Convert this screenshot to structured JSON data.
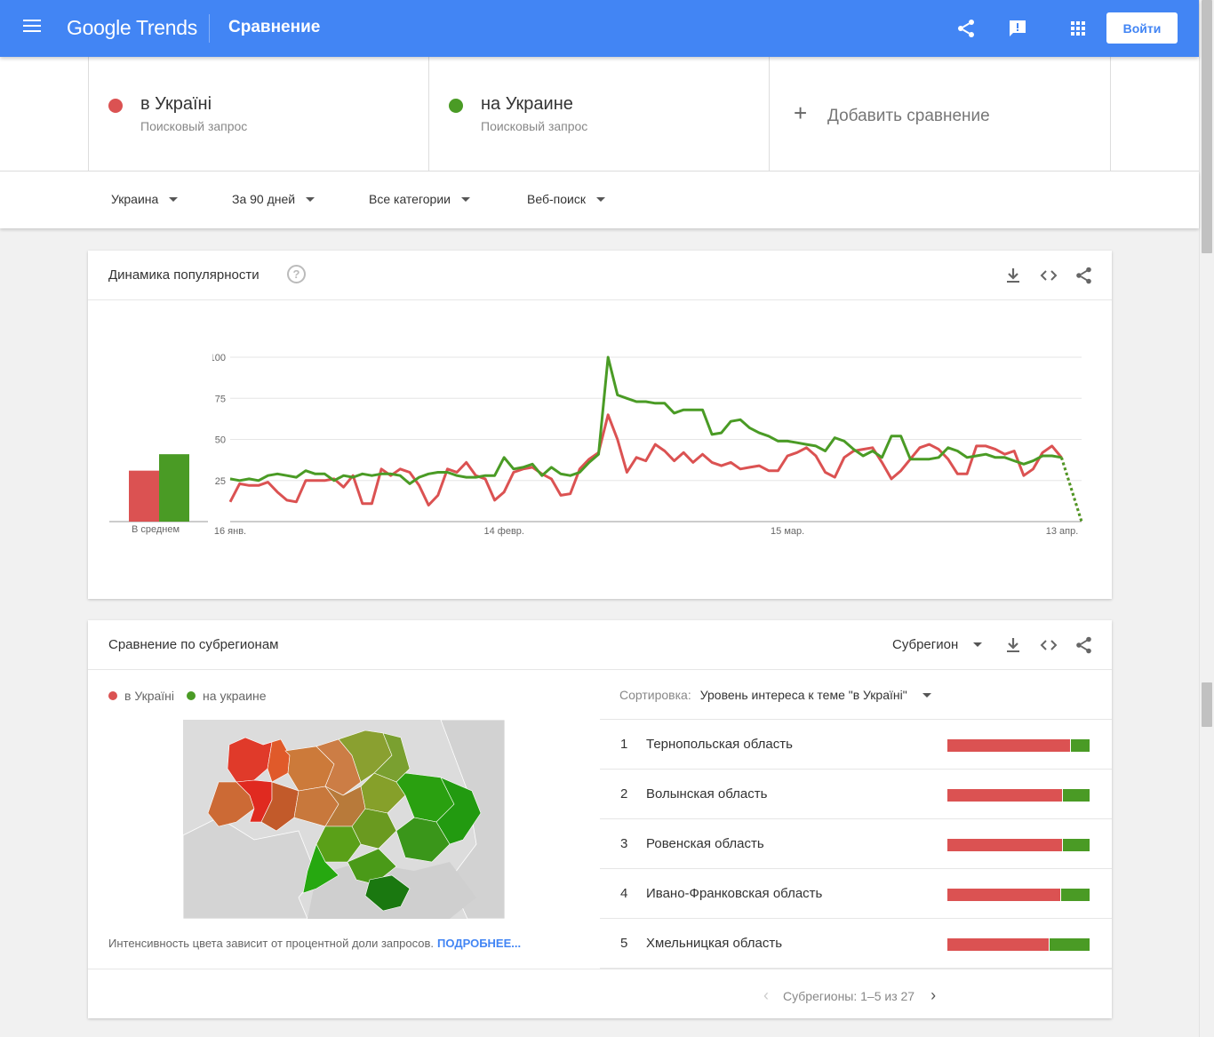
{
  "header": {
    "logo": "Google Trends",
    "title": "Сравнение",
    "login_label": "Войти"
  },
  "terms": [
    {
      "name": "в Україні",
      "type": "Поисковый запрос",
      "color": "#db5252"
    },
    {
      "name": "на Украине",
      "type": "Поисковый запрос",
      "color": "#4a9b25"
    }
  ],
  "add_comparison": "Добавить сравнение",
  "filters": {
    "region": "Украина",
    "period": "За 90 дней",
    "category": "Все категории",
    "search_type": "Веб-поиск"
  },
  "interest_card": {
    "title": "Динамика популярности",
    "help": "?",
    "avg_label": "В среднем"
  },
  "chart_data": {
    "type": "line",
    "x_labels": [
      "16 янв.",
      "14 февр.",
      "15 мар.",
      "13 апр."
    ],
    "y_ticks": [
      "25",
      "50",
      "75",
      "100"
    ],
    "ylim": [
      0,
      100
    ],
    "grid": true,
    "averages": [
      {
        "name": "в Україні",
        "value": 31,
        "color": "#db5252"
      },
      {
        "name": "на Украине",
        "value": 41,
        "color": "#4a9b25"
      }
    ],
    "series": [
      {
        "name": "в Україні",
        "color": "#db5252",
        "values": [
          12,
          23,
          22,
          22,
          24,
          18,
          13,
          12,
          25,
          25,
          25,
          26,
          21,
          28,
          11,
          11,
          32,
          28,
          32,
          30,
          22,
          10,
          16,
          32,
          30,
          36,
          28,
          26,
          13,
          18,
          30,
          32,
          33,
          29,
          26,
          16,
          17,
          32,
          38,
          42,
          65,
          50,
          30,
          39,
          37,
          47,
          43,
          37,
          42,
          36,
          41,
          36,
          34,
          36,
          32,
          33,
          34,
          31,
          31,
          40,
          42,
          45,
          40,
          30,
          27,
          39,
          43,
          44,
          45,
          36,
          26,
          31,
          38,
          45,
          47,
          44,
          38,
          29,
          29,
          46,
          46,
          44,
          41,
          43,
          28,
          32,
          42,
          46,
          39,
          0
        ]
      },
      {
        "name": "на Украине",
        "color": "#4a9b25",
        "values": [
          26,
          25,
          26,
          25,
          28,
          29,
          28,
          27,
          31,
          29,
          29,
          25,
          28,
          27,
          29,
          28,
          29,
          29,
          28,
          23,
          27,
          29,
          30,
          30,
          28,
          27,
          27,
          28,
          28,
          39,
          32,
          33,
          35,
          28,
          33,
          29,
          28,
          30,
          36,
          41,
          100,
          77,
          75,
          73,
          73,
          72,
          72,
          66,
          68,
          68,
          68,
          53,
          54,
          61,
          62,
          57,
          54,
          52,
          49,
          49,
          48,
          47,
          46,
          43,
          51,
          49,
          44,
          40,
          43,
          39,
          52,
          52,
          38,
          38,
          38,
          39,
          45,
          43,
          39,
          40,
          41,
          39,
          39,
          37,
          35,
          37,
          40,
          40,
          39,
          0
        ]
      }
    ]
  },
  "region_card": {
    "title": "Сравнение по субрегионам",
    "dropdown": "Субрегион",
    "legend": [
      "в Україні",
      "на украине"
    ],
    "note": "Интенсивность цвета зависит от процентной доли запросов.",
    "more_link": "ПОДРОБНЕЕ...",
    "sort_label": "Сортировка:",
    "sort_value": "Уровень интереса к теме \"в Україні\"",
    "pager_text": "Субрегионы: 1–5 из 27",
    "rows": [
      {
        "rank": "1",
        "name": "Тернопольская область",
        "red": 87,
        "green": 13
      },
      {
        "rank": "2",
        "name": "Волынская область",
        "red": 81,
        "green": 19
      },
      {
        "rank": "3",
        "name": "Ровенская область",
        "red": 81,
        "green": 19
      },
      {
        "rank": "4",
        "name": "Ивано-Франковская область",
        "red": 80,
        "green": 20
      },
      {
        "rank": "5",
        "name": "Хмельницкая область",
        "red": 72,
        "green": 28
      }
    ]
  },
  "icons": [
    "menu-icon",
    "share-icon",
    "feedback-icon",
    "apps-icon",
    "download-icon",
    "embed-icon",
    "help-icon",
    "chevron-left-icon",
    "chevron-right-icon",
    "caret-down-icon"
  ]
}
